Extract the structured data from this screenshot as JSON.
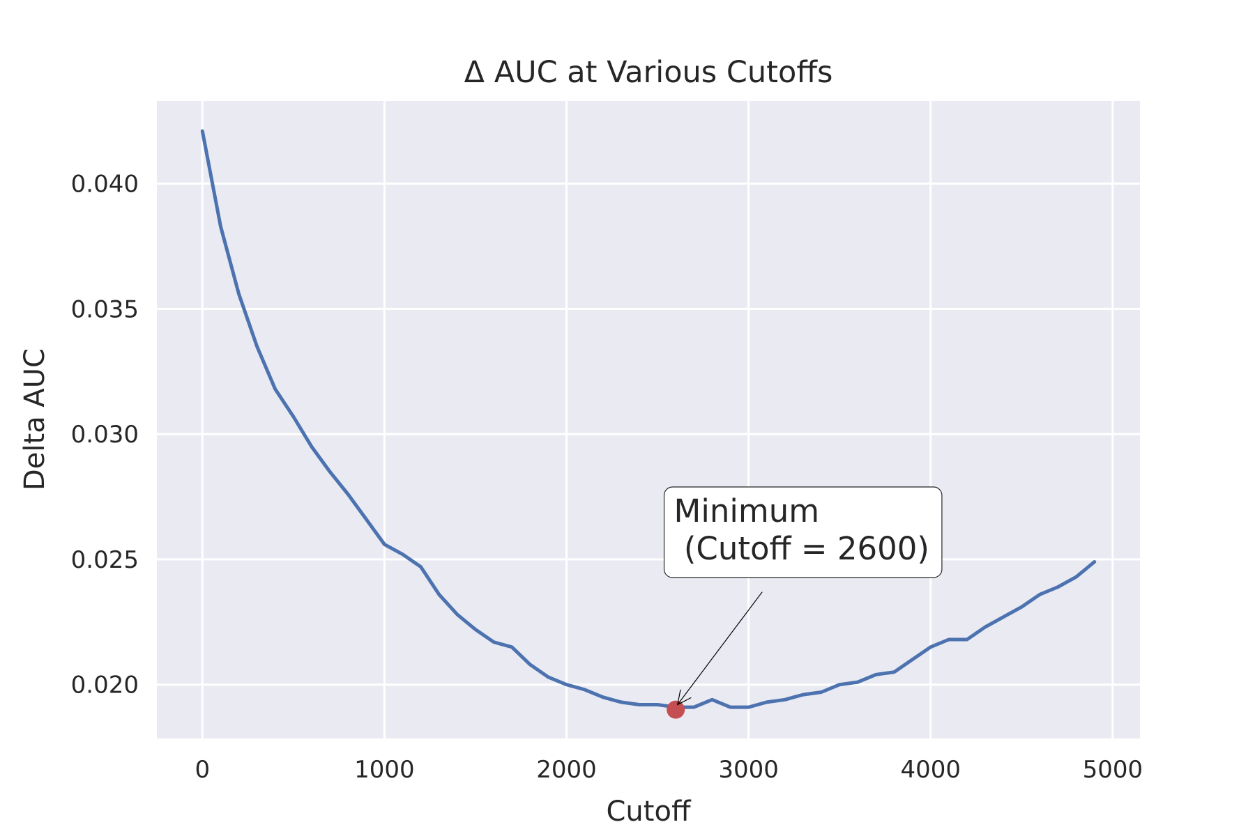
{
  "chart_data": {
    "type": "line",
    "title": "Δ AUC at Various Cutoffs",
    "xlabel": "Cutoff",
    "ylabel": "Delta AUC",
    "xlim": [
      -250,
      5150
    ],
    "ylim": [
      0.01785,
      0.0433
    ],
    "xticks": [
      0,
      1000,
      2000,
      3000,
      4000,
      5000
    ],
    "xtick_labels": [
      "0",
      "1000",
      "2000",
      "3000",
      "4000",
      "5000"
    ],
    "yticks": [
      0.02,
      0.025,
      0.03,
      0.035,
      0.04
    ],
    "ytick_labels": [
      "0.020",
      "0.025",
      "0.030",
      "0.035",
      "0.040"
    ],
    "grid": true,
    "background": "#eaeaf2",
    "series": [
      {
        "color": "#4c72b0",
        "x": [
          0,
          100,
          200,
          300,
          400,
          500,
          600,
          700,
          800,
          900,
          1000,
          1100,
          1200,
          1300,
          1400,
          1500,
          1600,
          1700,
          1800,
          1900,
          2000,
          2100,
          2200,
          2300,
          2400,
          2500,
          2600,
          2700,
          2800,
          2900,
          3000,
          3100,
          3200,
          3300,
          3400,
          3500,
          3600,
          3700,
          3800,
          3900,
          4000,
          4100,
          4200,
          4300,
          4400,
          4500,
          4600,
          4700,
          4800,
          4900
        ],
        "y": [
          0.0421,
          0.0383,
          0.0356,
          0.0335,
          0.0318,
          0.0307,
          0.0295,
          0.0285,
          0.0276,
          0.0266,
          0.0256,
          0.0252,
          0.0247,
          0.0236,
          0.0228,
          0.0222,
          0.0217,
          0.0215,
          0.0208,
          0.0203,
          0.02,
          0.0198,
          0.0195,
          0.0193,
          0.0192,
          0.0192,
          0.0191,
          0.0191,
          0.0194,
          0.0191,
          0.0191,
          0.0193,
          0.0194,
          0.0196,
          0.0197,
          0.02,
          0.0201,
          0.0204,
          0.0205,
          0.021,
          0.0215,
          0.0218,
          0.0218,
          0.0223,
          0.0227,
          0.0231,
          0.0236,
          0.0239,
          0.0243,
          0.0249
        ]
      }
    ],
    "marker": {
      "x": 2600,
      "y": 0.019,
      "color": "#c44e52"
    },
    "annotation": {
      "lines": [
        "Minimum",
        " (Cutoff = 2600)"
      ],
      "text_x": 2590,
      "text_y": 0.0265,
      "arrow_from": [
        3075,
        0.0237
      ],
      "arrow_to": [
        2610,
        0.0192
      ]
    }
  }
}
